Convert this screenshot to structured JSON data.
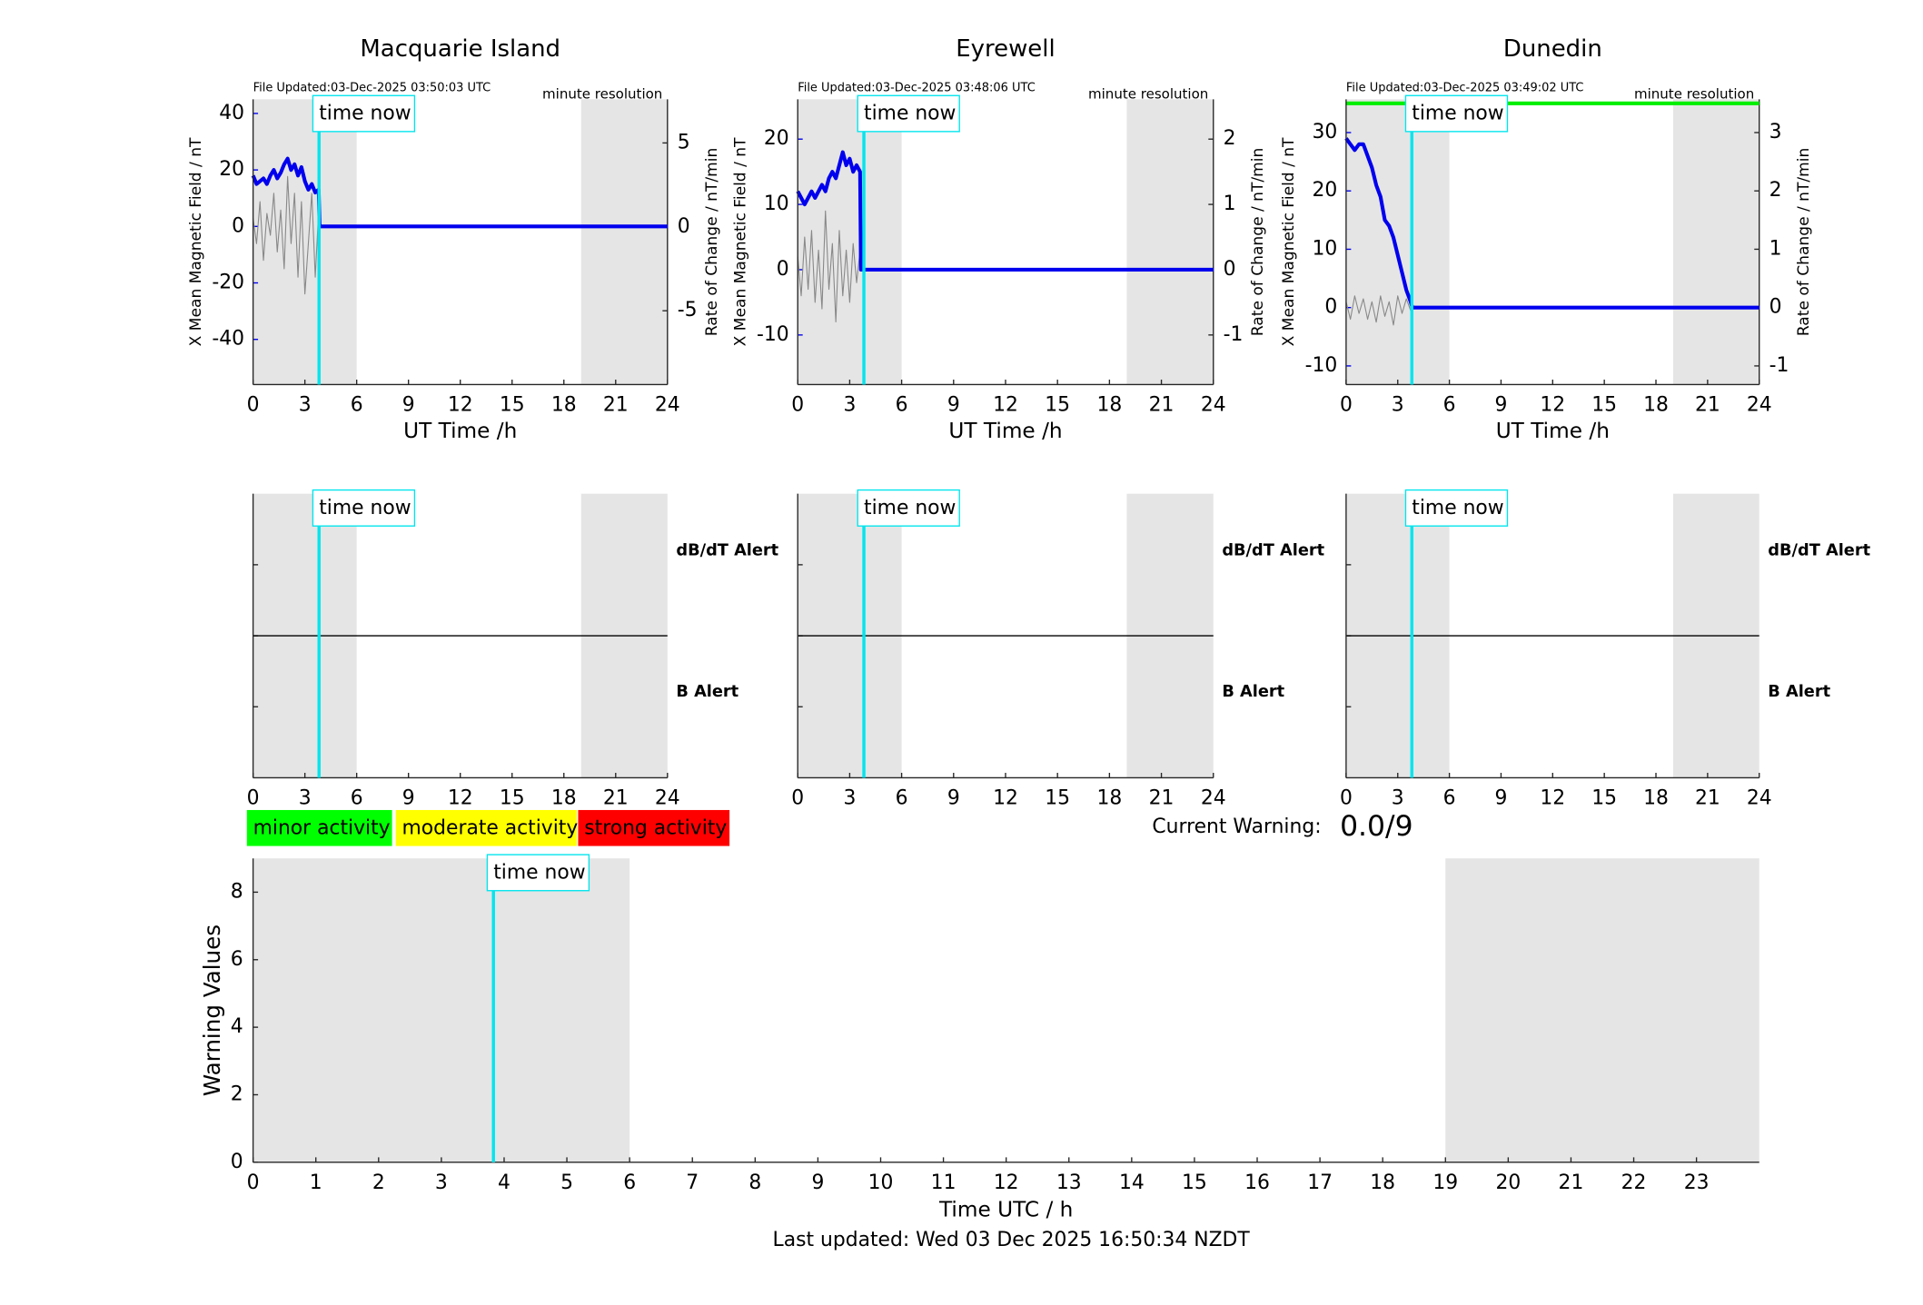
{
  "chart_data": [
    {
      "type": "line",
      "title": "Macquarie Island",
      "file_updated": "File Updated:03-Dec-2025 03:50:03 UTC",
      "resolution": "minute resolution",
      "ylabel": "X Mean Magnetic Field / nT",
      "y2label": "Rate of Change / nT/min",
      "xlabel": "UT Time /h",
      "annotation": "time now",
      "time_now": 3.82,
      "shaded": [
        [
          0,
          6
        ],
        [
          19,
          24
        ]
      ],
      "xlim": [
        0,
        24
      ],
      "xticks": [
        0,
        3,
        6,
        9,
        12,
        15,
        18,
        21,
        24
      ],
      "ylim": [
        -56,
        45
      ],
      "yticks": [
        -40,
        -20,
        0,
        20,
        40
      ],
      "y2lim": [
        -9.4,
        7.6
      ],
      "y2ticks": [
        -5,
        0,
        5
      ],
      "series": [
        {
          "color": "#0000ee",
          "x": [
            0,
            0.2,
            0.4,
            0.6,
            0.8,
            1,
            1.2,
            1.4,
            1.6,
            1.8,
            2,
            2.2,
            2.4,
            2.6,
            2.8,
            3,
            3.2,
            3.4,
            3.6,
            3.8,
            3.85,
            24
          ],
          "values": [
            18,
            15,
            16,
            17,
            15,
            18,
            20,
            17,
            19,
            22,
            24,
            20,
            22,
            18,
            21,
            16,
            13,
            15,
            12,
            13,
            0,
            0
          ]
        },
        {
          "color": "#888888",
          "axis": "y2",
          "x": [
            0,
            0.2,
            0.4,
            0.6,
            0.8,
            1,
            1.2,
            1.4,
            1.6,
            1.8,
            2,
            2.2,
            2.4,
            2.6,
            2.8,
            3,
            3.2,
            3.4,
            3.6,
            3.8,
            3.85,
            24
          ],
          "values": [
            0.5,
            -1,
            1.5,
            -2,
            0.8,
            -0.5,
            2,
            -1.5,
            1,
            -2.5,
            3,
            -1,
            2,
            -3,
            1.5,
            -4,
            -1,
            2,
            -3,
            1,
            0,
            0
          ]
        }
      ]
    },
    {
      "type": "line",
      "title": "Eyrewell",
      "file_updated": "File Updated:03-Dec-2025 03:48:06 UTC",
      "resolution": "minute resolution",
      "ylabel": "X Mean Magnetic Field / nT",
      "y2label": "Rate of Change / nT/min",
      "xlabel": "UT Time /h",
      "annotation": "time now",
      "time_now": 3.82,
      "shaded": [
        [
          0,
          6
        ],
        [
          19,
          24
        ]
      ],
      "xlim": [
        0,
        24
      ],
      "xticks": [
        0,
        3,
        6,
        9,
        12,
        15,
        18,
        21,
        24
      ],
      "ylim": [
        -17.6,
        26.1
      ],
      "yticks": [
        -10,
        0,
        10,
        20
      ],
      "y2lim": [
        -1.76,
        2.61
      ],
      "y2ticks": [
        -1,
        0,
        1,
        2
      ],
      "series": [
        {
          "color": "#0000ee",
          "x": [
            0,
            0.2,
            0.4,
            0.6,
            0.8,
            1,
            1.2,
            1.4,
            1.6,
            1.8,
            2,
            2.2,
            2.4,
            2.6,
            2.8,
            3,
            3.2,
            3.4,
            3.6,
            3.65,
            24
          ],
          "values": [
            12,
            11,
            10,
            11,
            12,
            11,
            12,
            13,
            12,
            14,
            15,
            14,
            16,
            18,
            16,
            17,
            15,
            16,
            15,
            0,
            0
          ]
        },
        {
          "color": "#888888",
          "axis": "y2",
          "x": [
            0,
            0.2,
            0.4,
            0.6,
            0.8,
            1,
            1.2,
            1.4,
            1.6,
            1.8,
            2,
            2.2,
            2.4,
            2.6,
            2.8,
            3,
            3.2,
            3.4,
            3.6,
            3.65,
            24
          ],
          "values": [
            0.2,
            -0.4,
            0.5,
            -0.3,
            0.6,
            -0.5,
            0.3,
            -0.6,
            0.9,
            -0.3,
            0.4,
            -0.8,
            0.6,
            -0.4,
            0.3,
            -0.5,
            0.4,
            -0.2,
            0.3,
            0,
            0
          ]
        }
      ]
    },
    {
      "type": "line",
      "title": "Dunedin",
      "file_updated": "File Updated:03-Dec-2025 03:49:02 UTC",
      "resolution": "minute resolution",
      "ylabel": "X Mean Magnetic Field / nT",
      "y2label": "Rate of Change / nT/min",
      "xlabel": "UT Time /h",
      "annotation": "time now",
      "time_now": 3.82,
      "shaded": [
        [
          0,
          6
        ],
        [
          19,
          24
        ]
      ],
      "xlim": [
        0,
        24
      ],
      "xticks": [
        0,
        3,
        6,
        9,
        12,
        15,
        18,
        21,
        24
      ],
      "ylim": [
        -13.2,
        35.7
      ],
      "yticks": [
        -10,
        0,
        10,
        20,
        30
      ],
      "y2lim": [
        -1.32,
        3.57
      ],
      "y2ticks": [
        -1,
        0,
        1,
        2,
        3
      ],
      "series": [
        {
          "color": "#00ee00",
          "x": [
            0,
            24
          ],
          "values": [
            35,
            35
          ]
        },
        {
          "color": "#0000ee",
          "x": [
            0,
            0.25,
            0.5,
            0.75,
            1,
            1.25,
            1.5,
            1.75,
            2,
            2.25,
            2.5,
            2.75,
            3,
            3.25,
            3.5,
            3.75,
            3.85,
            24
          ],
          "values": [
            29,
            28,
            27,
            28,
            28,
            26,
            24,
            21,
            19,
            15,
            14,
            12,
            9,
            6,
            3,
            1,
            0,
            0
          ]
        },
        {
          "color": "#888888",
          "axis": "y2",
          "x": [
            0,
            0.25,
            0.5,
            0.75,
            1,
            1.25,
            1.5,
            1.75,
            2,
            2.25,
            2.5,
            2.75,
            3,
            3.25,
            3.5,
            3.75,
            3.85,
            24
          ],
          "values": [
            0.1,
            -0.2,
            0.2,
            -0.1,
            0.15,
            -0.2,
            0.1,
            -0.25,
            0.2,
            -0.15,
            0.1,
            -0.3,
            0.2,
            -0.1,
            0.15,
            -0.05,
            0,
            0
          ]
        }
      ]
    },
    {
      "type": "alert",
      "upper_label": "dB/dT Alert",
      "lower_label": "B Alert",
      "annotation": "time now",
      "time_now": 3.82,
      "shaded": [
        [
          0,
          6
        ],
        [
          19,
          24
        ]
      ],
      "xlim": [
        0,
        24
      ],
      "xticks": [
        0,
        3,
        6,
        9,
        12,
        15,
        18,
        21,
        24
      ],
      "ylim": [
        0,
        4
      ],
      "yticks": [
        1,
        2,
        3
      ]
    },
    {
      "type": "alert",
      "upper_label": "dB/dT Alert",
      "lower_label": "B Alert",
      "annotation": "time now",
      "time_now": 3.82,
      "shaded": [
        [
          0,
          6
        ],
        [
          19,
          24
        ]
      ],
      "xlim": [
        0,
        24
      ],
      "xticks": [
        0,
        3,
        6,
        9,
        12,
        15,
        18,
        21,
        24
      ],
      "ylim": [
        0,
        4
      ],
      "yticks": [
        1,
        2,
        3
      ]
    },
    {
      "type": "alert",
      "upper_label": "dB/dT Alert",
      "lower_label": "B Alert",
      "annotation": "time now",
      "time_now": 3.82,
      "shaded": [
        [
          0,
          6
        ],
        [
          19,
          24
        ]
      ],
      "xlim": [
        0,
        24
      ],
      "xticks": [
        0,
        3,
        6,
        9,
        12,
        15,
        18,
        21,
        24
      ],
      "ylim": [
        0,
        4
      ],
      "yticks": [
        1,
        2,
        3
      ]
    },
    {
      "type": "warning",
      "ylabel": "Warning Values",
      "xlabel": "Time UTC / h",
      "annotation": "time now",
      "time_now": 3.83,
      "shaded": [
        [
          0,
          6
        ],
        [
          19,
          24
        ]
      ],
      "xlim": [
        0,
        24
      ],
      "xticks": [
        0,
        1,
        2,
        3,
        4,
        5,
        6,
        7,
        8,
        9,
        10,
        11,
        12,
        13,
        14,
        15,
        16,
        17,
        18,
        19,
        20,
        21,
        22,
        23
      ],
      "ylim": [
        0,
        9
      ],
      "yticks": [
        0,
        2,
        4,
        6,
        8
      ]
    }
  ],
  "activity_legend": [
    {
      "name": "minor activity",
      "color": "#00ff00"
    },
    {
      "name": "moderate activity",
      "color": "#ffff00"
    },
    {
      "name": "strong activity",
      "color": "#ff0000"
    }
  ],
  "current_warning": {
    "label": "Current Warning:",
    "value": "0.0/9"
  },
  "last_updated": "Last updated: Wed 03 Dec 2025 16:50:34 NZDT"
}
